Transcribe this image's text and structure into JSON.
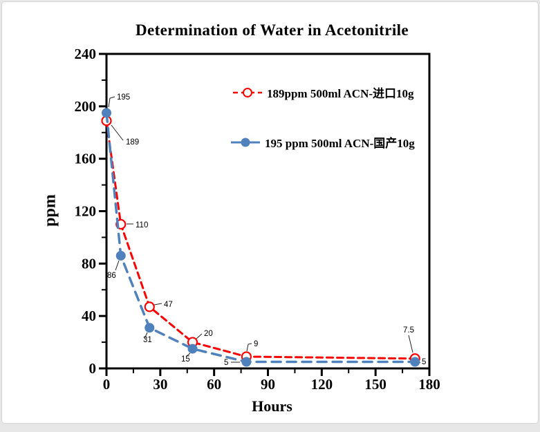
{
  "window": {
    "background": "#ffffff",
    "border_color": "#d5d5d5"
  },
  "chart_data": {
    "type": "line",
    "title": "Determination of Water in Acetonitrile",
    "xlabel": "Hours",
    "ylabel": "ppm",
    "xlim": [
      0,
      180
    ],
    "ylim": [
      0,
      240
    ],
    "x_major_ticks": [
      0,
      30,
      60,
      90,
      120,
      150,
      180
    ],
    "x_minor_ticks": [
      15,
      45,
      75,
      105,
      135,
      165
    ],
    "y_major_ticks": [
      0,
      40,
      80,
      120,
      160,
      200,
      240
    ],
    "y_minor_ticks": [
      20,
      60,
      100,
      140,
      180,
      220
    ],
    "grid": false,
    "legend_position": "inside-upper-right",
    "axis_color": "#000000",
    "series": [
      {
        "name": "189ppm  500ml ACN-进口10g",
        "color": "#ff0000",
        "marker": "open-circle",
        "line_style": "dashed",
        "x": [
          0,
          8,
          24,
          48,
          78,
          172
        ],
        "y": [
          189,
          110,
          47,
          20,
          9,
          7.5
        ],
        "point_labels": [
          "189",
          "110",
          "47",
          "20",
          "9",
          "7.5"
        ]
      },
      {
        "name": "195 ppm 500ml ACN-国产10g",
        "color": "#4f81bd",
        "marker": "filled-circle",
        "line_style": "dashed",
        "x": [
          0,
          8,
          24,
          48,
          78,
          172
        ],
        "y": [
          195,
          86,
          31,
          15,
          5,
          5
        ],
        "point_labels": [
          "195",
          "86",
          "31",
          "15",
          "5",
          "5"
        ]
      }
    ]
  }
}
